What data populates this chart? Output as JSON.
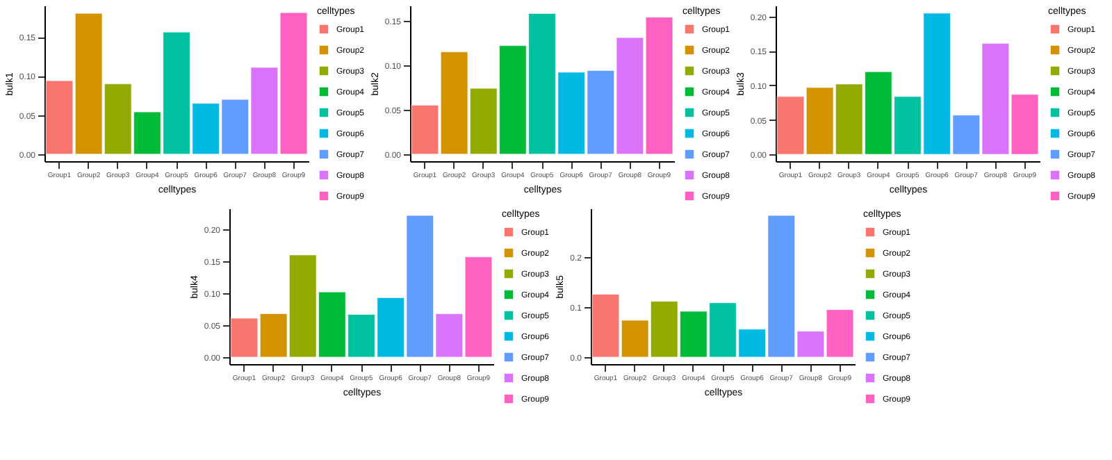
{
  "chart_data": [
    {
      "type": "bar",
      "stacked": true,
      "categories": [
        "Group1",
        "Group2",
        "Group3",
        "Group4",
        "Group5",
        "Group6",
        "Group7",
        "Group8",
        "Group9"
      ],
      "xlabel": "celltypes",
      "ylabel": "bulk1",
      "legend_title": "celltypes",
      "legend": "right",
      "ylim": [
        -0.009,
        0.19
      ],
      "yticks": [
        {
          "value": 0,
          "label": "0.00"
        },
        {
          "value": 0.05,
          "label": "0.05"
        },
        {
          "value": 0.1,
          "label": "0.10"
        },
        {
          "value": 0.15,
          "label": "0.15"
        }
      ],
      "series": [
        {
          "name": "Group1",
          "color": "#f8766d",
          "values": [
            0.094,
            null,
            null,
            null,
            null,
            null,
            null,
            null,
            null
          ]
        },
        {
          "name": "Group2",
          "color": "#d39200",
          "values": [
            null,
            0.18,
            null,
            null,
            null,
            null,
            null,
            null,
            null
          ]
        },
        {
          "name": "Group3",
          "color": "#93aa00",
          "values": [
            null,
            null,
            0.09,
            null,
            null,
            null,
            null,
            null,
            null
          ]
        },
        {
          "name": "Group4",
          "color": "#00ba38",
          "values": [
            null,
            null,
            null,
            0.054,
            null,
            null,
            null,
            null,
            null
          ]
        },
        {
          "name": "Group5",
          "color": "#00c19f",
          "values": [
            null,
            null,
            null,
            null,
            0.156,
            null,
            null,
            null,
            null
          ]
        },
        {
          "name": "Group6",
          "color": "#00b9e3",
          "values": [
            null,
            null,
            null,
            null,
            null,
            0.065,
            null,
            null,
            null
          ]
        },
        {
          "name": "Group7",
          "color": "#619cff",
          "values": [
            null,
            null,
            null,
            null,
            null,
            null,
            0.07,
            null,
            null
          ]
        },
        {
          "name": "Group8",
          "color": "#db72fb",
          "values": [
            null,
            null,
            null,
            null,
            null,
            null,
            null,
            0.111,
            null
          ]
        },
        {
          "name": "Group9",
          "color": "#ff61c3",
          "values": [
            null,
            null,
            null,
            null,
            null,
            null,
            null,
            null,
            0.181
          ]
        }
      ]
    },
    {
      "type": "bar",
      "stacked": true,
      "categories": [
        "Group1",
        "Group2",
        "Group3",
        "Group4",
        "Group5",
        "Group6",
        "Group7",
        "Group8",
        "Group9"
      ],
      "xlabel": "celltypes",
      "ylabel": "bulk2",
      "legend_title": "celltypes",
      "legend": "right",
      "ylim": [
        -0.008,
        0.167
      ],
      "yticks": [
        {
          "value": 0,
          "label": "0.00"
        },
        {
          "value": 0.05,
          "label": "0.05"
        },
        {
          "value": 0.1,
          "label": "0.10"
        },
        {
          "value": 0.15,
          "label": "0.15"
        }
      ],
      "series": [
        {
          "name": "Group1",
          "color": "#f8766d",
          "values": [
            0.055,
            null,
            null,
            null,
            null,
            null,
            null,
            null,
            null
          ]
        },
        {
          "name": "Group2",
          "color": "#d39200",
          "values": [
            null,
            0.115,
            null,
            null,
            null,
            null,
            null,
            null,
            null
          ]
        },
        {
          "name": "Group3",
          "color": "#93aa00",
          "values": [
            null,
            null,
            0.074,
            null,
            null,
            null,
            null,
            null,
            null
          ]
        },
        {
          "name": "Group4",
          "color": "#00ba38",
          "values": [
            null,
            null,
            null,
            0.122,
            null,
            null,
            null,
            null,
            null
          ]
        },
        {
          "name": "Group5",
          "color": "#00c19f",
          "values": [
            null,
            null,
            null,
            null,
            0.158,
            null,
            null,
            null,
            null
          ]
        },
        {
          "name": "Group6",
          "color": "#00b9e3",
          "values": [
            null,
            null,
            null,
            null,
            null,
            0.092,
            null,
            null,
            null
          ]
        },
        {
          "name": "Group7",
          "color": "#619cff",
          "values": [
            null,
            null,
            null,
            null,
            null,
            null,
            0.094,
            null,
            null
          ]
        },
        {
          "name": "Group8",
          "color": "#db72fb",
          "values": [
            null,
            null,
            null,
            null,
            null,
            null,
            null,
            0.131,
            null
          ]
        },
        {
          "name": "Group9",
          "color": "#ff61c3",
          "values": [
            null,
            null,
            null,
            null,
            null,
            null,
            null,
            null,
            0.154
          ]
        }
      ]
    },
    {
      "type": "bar",
      "stacked": true,
      "categories": [
        "Group1",
        "Group2",
        "Group3",
        "Group4",
        "Group5",
        "Group6",
        "Group7",
        "Group8",
        "Group9"
      ],
      "xlabel": "celltypes",
      "ylabel": "bulk3",
      "legend_title": "celltypes",
      "legend": "right",
      "ylim": [
        -0.01,
        0.216
      ],
      "yticks": [
        {
          "value": 0,
          "label": "0.00"
        },
        {
          "value": 0.05,
          "label": "0.05"
        },
        {
          "value": 0.1,
          "label": "0.10"
        },
        {
          "value": 0.15,
          "label": "0.15"
        },
        {
          "value": 0.2,
          "label": "0.20"
        }
      ],
      "series": [
        {
          "name": "Group1",
          "color": "#f8766d",
          "values": [
            0.084,
            null,
            null,
            null,
            null,
            null,
            null,
            null,
            null
          ]
        },
        {
          "name": "Group2",
          "color": "#d39200",
          "values": [
            null,
            0.097,
            null,
            null,
            null,
            null,
            null,
            null,
            null
          ]
        },
        {
          "name": "Group3",
          "color": "#93aa00",
          "values": [
            null,
            null,
            0.102,
            null,
            null,
            null,
            null,
            null,
            null
          ]
        },
        {
          "name": "Group4",
          "color": "#00ba38",
          "values": [
            null,
            null,
            null,
            0.12,
            null,
            null,
            null,
            null,
            null
          ]
        },
        {
          "name": "Group5",
          "color": "#00c19f",
          "values": [
            null,
            null,
            null,
            null,
            0.084,
            null,
            null,
            null,
            null
          ]
        },
        {
          "name": "Group6",
          "color": "#00b9e3",
          "values": [
            null,
            null,
            null,
            null,
            null,
            0.205,
            null,
            null,
            null
          ]
        },
        {
          "name": "Group7",
          "color": "#619cff",
          "values": [
            null,
            null,
            null,
            null,
            null,
            null,
            0.057,
            null,
            null
          ]
        },
        {
          "name": "Group8",
          "color": "#db72fb",
          "values": [
            null,
            null,
            null,
            null,
            null,
            null,
            null,
            0.161,
            null
          ]
        },
        {
          "name": "Group9",
          "color": "#ff61c3",
          "values": [
            null,
            null,
            null,
            null,
            null,
            null,
            null,
            null,
            0.087
          ]
        }
      ]
    },
    {
      "type": "bar",
      "stacked": true,
      "categories": [
        "Group1",
        "Group2",
        "Group3",
        "Group4",
        "Group5",
        "Group6",
        "Group7",
        "Group8",
        "Group9"
      ],
      "xlabel": "celltypes",
      "ylabel": "bulk4",
      "legend_title": "celltypes",
      "legend": "right",
      "ylim": [
        -0.011,
        0.233
      ],
      "yticks": [
        {
          "value": 0,
          "label": "0.00"
        },
        {
          "value": 0.05,
          "label": "0.05"
        },
        {
          "value": 0.1,
          "label": "0.10"
        },
        {
          "value": 0.15,
          "label": "0.15"
        },
        {
          "value": 0.2,
          "label": "0.20"
        }
      ],
      "series": [
        {
          "name": "Group1",
          "color": "#f8766d",
          "values": [
            0.061,
            null,
            null,
            null,
            null,
            null,
            null,
            null,
            null
          ]
        },
        {
          "name": "Group2",
          "color": "#d39200",
          "values": [
            null,
            0.068,
            null,
            null,
            null,
            null,
            null,
            null,
            null
          ]
        },
        {
          "name": "Group3",
          "color": "#93aa00",
          "values": [
            null,
            null,
            0.16,
            null,
            null,
            null,
            null,
            null,
            null
          ]
        },
        {
          "name": "Group4",
          "color": "#00ba38",
          "values": [
            null,
            null,
            null,
            0.102,
            null,
            null,
            null,
            null,
            null
          ]
        },
        {
          "name": "Group5",
          "color": "#00c19f",
          "values": [
            null,
            null,
            null,
            null,
            0.067,
            null,
            null,
            null,
            null
          ]
        },
        {
          "name": "Group6",
          "color": "#00b9e3",
          "values": [
            null,
            null,
            null,
            null,
            null,
            0.093,
            null,
            null,
            null
          ]
        },
        {
          "name": "Group7",
          "color": "#619cff",
          "values": [
            null,
            null,
            null,
            null,
            null,
            null,
            0.222,
            null,
            null
          ]
        },
        {
          "name": "Group8",
          "color": "#db72fb",
          "values": [
            null,
            null,
            null,
            null,
            null,
            null,
            null,
            0.068,
            null
          ]
        },
        {
          "name": "Group9",
          "color": "#ff61c3",
          "values": [
            null,
            null,
            null,
            null,
            null,
            null,
            null,
            null,
            0.157
          ]
        }
      ]
    },
    {
      "type": "bar",
      "stacked": true,
      "categories": [
        "Group1",
        "Group2",
        "Group3",
        "Group4",
        "Group5",
        "Group6",
        "Group7",
        "Group8",
        "Group9"
      ],
      "xlabel": "celltypes",
      "ylabel": "bulk5",
      "legend_title": "celltypes",
      "legend": "right",
      "ylim": [
        -0.014,
        0.298
      ],
      "yticks": [
        {
          "value": 0,
          "label": "0.0"
        },
        {
          "value": 0.1,
          "label": "0.1"
        },
        {
          "value": 0.2,
          "label": "0.2"
        }
      ],
      "series": [
        {
          "name": "Group1",
          "color": "#f8766d",
          "values": [
            0.126,
            null,
            null,
            null,
            null,
            null,
            null,
            null,
            null
          ]
        },
        {
          "name": "Group2",
          "color": "#d39200",
          "values": [
            null,
            0.074,
            null,
            null,
            null,
            null,
            null,
            null,
            null
          ]
        },
        {
          "name": "Group3",
          "color": "#93aa00",
          "values": [
            null,
            null,
            0.112,
            null,
            null,
            null,
            null,
            null,
            null
          ]
        },
        {
          "name": "Group4",
          "color": "#00ba38",
          "values": [
            null,
            null,
            null,
            0.092,
            null,
            null,
            null,
            null,
            null
          ]
        },
        {
          "name": "Group5",
          "color": "#00c19f",
          "values": [
            null,
            null,
            null,
            null,
            0.109,
            null,
            null,
            null,
            null
          ]
        },
        {
          "name": "Group6",
          "color": "#00b9e3",
          "values": [
            null,
            null,
            null,
            null,
            null,
            0.056,
            null,
            null,
            null
          ]
        },
        {
          "name": "Group7",
          "color": "#619cff",
          "values": [
            null,
            null,
            null,
            null,
            null,
            null,
            0.284,
            null,
            null
          ]
        },
        {
          "name": "Group8",
          "color": "#db72fb",
          "values": [
            null,
            null,
            null,
            null,
            null,
            null,
            null,
            0.052,
            null
          ]
        },
        {
          "name": "Group9",
          "color": "#ff61c3",
          "values": [
            null,
            null,
            null,
            null,
            null,
            null,
            null,
            null,
            0.095
          ]
        }
      ]
    }
  ]
}
